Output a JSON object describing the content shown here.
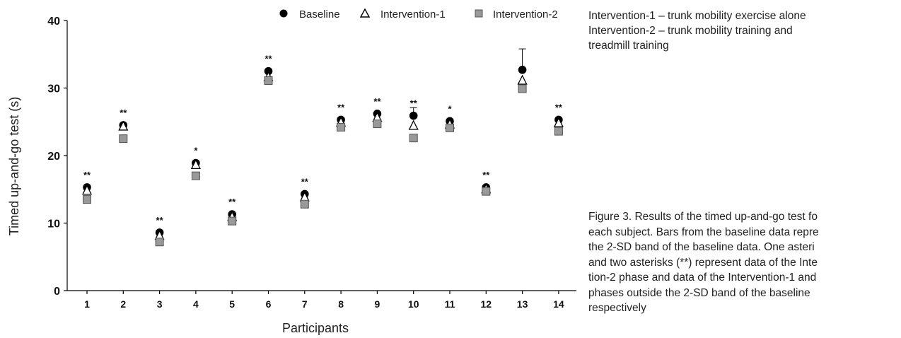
{
  "chart_data": {
    "type": "scatter",
    "xlabel": "Participants",
    "ylabel": "Timed up-and-go test (s)",
    "ylim": [
      0,
      40
    ],
    "yticks": [
      0,
      10,
      20,
      30,
      40
    ],
    "categories": [
      "1",
      "2",
      "3",
      "4",
      "5",
      "6",
      "7",
      "8",
      "9",
      "10",
      "11",
      "12",
      "13",
      "14"
    ],
    "series": [
      {
        "name": "Baseline",
        "marker": "circle",
        "color": "#000000",
        "values": [
          15.3,
          24.5,
          8.6,
          18.9,
          11.3,
          32.5,
          14.3,
          25.3,
          26.2,
          25.9,
          25.1,
          15.3,
          32.7,
          25.3
        ]
      },
      {
        "name": "Intervention-1",
        "marker": "triangle",
        "color": "#000000",
        "values": [
          14.8,
          24.3,
          8.1,
          18.6,
          10.9,
          31.6,
          13.8,
          24.9,
          25.6,
          24.4,
          24.6,
          15.0,
          31.1,
          24.8
        ]
      },
      {
        "name": "Intervention-2",
        "marker": "square",
        "color": "#999999",
        "values": [
          13.5,
          22.5,
          7.2,
          17.0,
          10.3,
          31.1,
          12.8,
          24.2,
          24.7,
          22.6,
          24.1,
          14.7,
          29.9,
          23.6
        ]
      }
    ],
    "error_bars": [
      {
        "series": "Baseline",
        "category": "10",
        "upper": 27.1
      },
      {
        "series": "Baseline",
        "category": "13",
        "upper": 35.8
      }
    ],
    "annotations": [
      "**",
      "**",
      "**",
      "*",
      "**",
      "**",
      "**",
      "**",
      "**",
      "**",
      "*",
      "**",
      "",
      "**"
    ],
    "legend": "top-right",
    "grid": false
  },
  "notes": [
    "Intervention-1 – trunk mobility exercise alone",
    "Intervention-2 – trunk mobility training and",
    "treadmill training"
  ],
  "caption_lines": [
    "Figure 3. Results of the timed up-and-go test fo",
    "each subject. Bars from the baseline data repre",
    "the 2-SD band of the baseline data. One asteri",
    "and two asterisks (**) represent data of the Inte",
    "tion-2 phase and data of the Intervention-1 and",
    "phases outside the 2-SD band of the baseline",
    "respectively"
  ]
}
